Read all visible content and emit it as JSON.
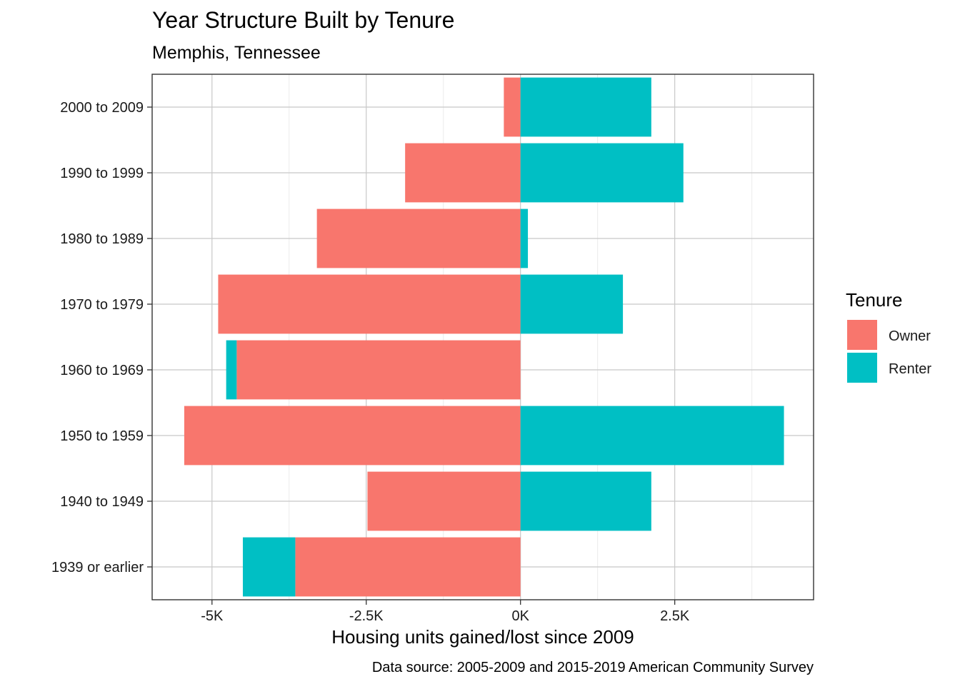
{
  "chart_data": {
    "type": "bar",
    "orientation": "horizontal",
    "stacking": "diverging",
    "title": "Year Structure Built by Tenure",
    "subtitle": "Memphis, Tennessee",
    "xlabel": "Housing units gained/lost since 2009",
    "ylabel": "",
    "caption": "Data source: 2005-2009 and 2015-2019 American Community Survey",
    "categories": [
      "2000 to 2009",
      "1990 to 1999",
      "1980 to 1989",
      "1970 to 1979",
      "1960 to 1969",
      "1950 to 1959",
      "1940 to 1949",
      "1939 or earlier"
    ],
    "series": [
      {
        "name": "Owner",
        "color": "#F8766D",
        "values": [
          -270,
          -1870,
          -3300,
          -4900,
          -4600,
          -5450,
          -2480,
          -3650
        ]
      },
      {
        "name": "Renter",
        "color": "#00BFC4",
        "values": [
          2120,
          2640,
          120,
          1660,
          -170,
          4270,
          2120,
          -850
        ]
      }
    ],
    "xlim": [
      -5970,
      4750
    ],
    "x_ticks": [
      -5000,
      -2500,
      0,
      2500
    ],
    "x_tick_labels": [
      "-5K",
      "-2.5K",
      "0K",
      "2.5K"
    ],
    "legend": {
      "title": "Tenure",
      "position": "right"
    },
    "grid": true
  }
}
